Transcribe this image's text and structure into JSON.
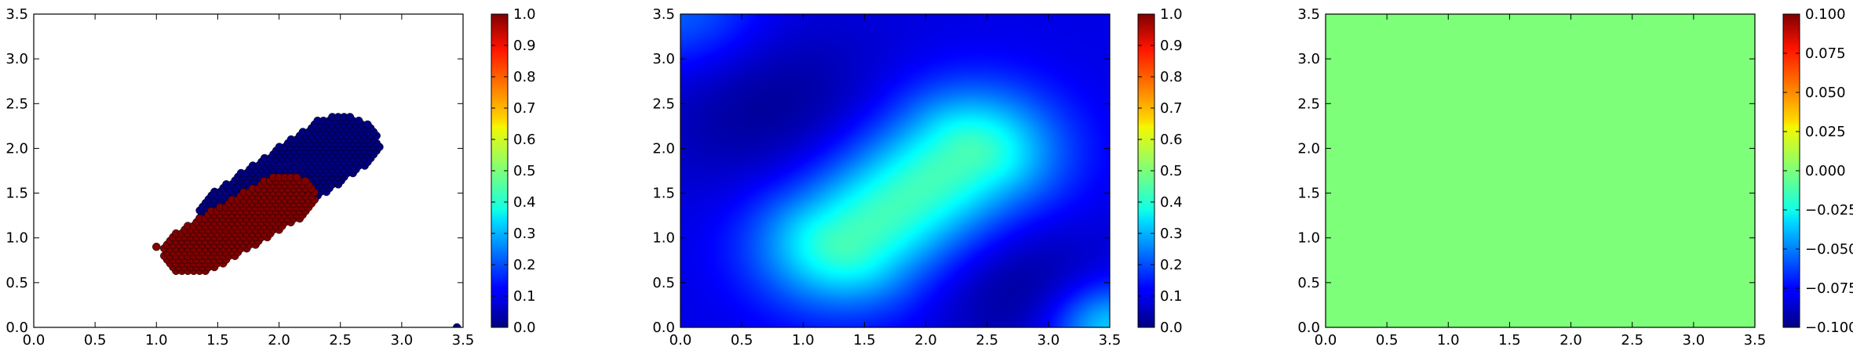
{
  "chart_data": [
    {
      "type": "scatter",
      "xlim": [
        0.0,
        3.5
      ],
      "ylim": [
        0.0,
        3.5
      ],
      "x_ticks": [
        "0.0",
        "0.5",
        "1.0",
        "1.5",
        "2.0",
        "2.5",
        "3.0",
        "3.5"
      ],
      "y_ticks": [
        "0.0",
        "0.5",
        "1.0",
        "1.5",
        "2.0",
        "2.5",
        "3.0",
        "3.5"
      ],
      "colormap": "jet",
      "colorbar": {
        "range": [
          0.0,
          1.0
        ],
        "ticks": [
          "0.0",
          "0.1",
          "0.2",
          "0.3",
          "0.4",
          "0.5",
          "0.6",
          "0.7",
          "0.8",
          "0.9",
          "1.0"
        ]
      },
      "series": [
        {
          "color_value": 0.0,
          "color": "#00007f",
          "region": {
            "from": [
              1.65,
              1.25
            ],
            "to": [
              2.5,
              2.05
            ],
            "radius": 0.32
          },
          "extra_points": [
            [
              3.45,
              0.0
            ]
          ]
        },
        {
          "color_value": 1.0,
          "color": "#7f0000",
          "region": {
            "from": [
              1.3,
              0.85
            ],
            "to": [
              2.05,
              1.45
            ],
            "radius": 0.26
          },
          "extra_points": [
            [
              1.0,
              0.9
            ]
          ]
        }
      ],
      "grid": false
    },
    {
      "type": "heatmap",
      "xlim": [
        0.0,
        3.5
      ],
      "ylim": [
        0.0,
        3.5
      ],
      "x_ticks": [
        "0.0",
        "0.5",
        "1.0",
        "1.5",
        "2.0",
        "2.5",
        "3.0",
        "3.5"
      ],
      "y_ticks": [
        "0.0",
        "0.5",
        "1.0",
        "1.5",
        "2.0",
        "2.5",
        "3.0",
        "3.5"
      ],
      "colormap": "jet",
      "colorbar": {
        "range": [
          0.0,
          1.0
        ],
        "ticks": [
          "0.0",
          "0.1",
          "0.2",
          "0.3",
          "0.4",
          "0.5",
          "0.6",
          "0.7",
          "0.8",
          "0.9",
          "1.0"
        ]
      },
      "field": {
        "base": 0.1,
        "ridge": {
          "from": [
            1.35,
            0.95
          ],
          "to": [
            2.35,
            1.95
          ],
          "peak": 0.45,
          "width": 0.5
        },
        "corner_bumps": [
          {
            "at": [
              0.0,
              3.5
            ],
            "value": 0.13,
            "width": 0.5
          },
          {
            "at": [
              3.5,
              0.0
            ],
            "value": 0.25,
            "width": 0.35
          }
        ],
        "dark_zones": [
          {
            "at": [
              0.7,
              2.5
            ],
            "depth": 0.08,
            "width": 0.7
          },
          {
            "at": [
              2.8,
              0.4
            ],
            "depth": 0.08,
            "width": 0.55
          }
        ]
      },
      "grid": false
    },
    {
      "type": "heatmap",
      "xlim": [
        0.0,
        3.5
      ],
      "ylim": [
        0.0,
        3.5
      ],
      "x_ticks": [
        "0.0",
        "0.5",
        "1.0",
        "1.5",
        "2.0",
        "2.5",
        "3.0",
        "3.5"
      ],
      "y_ticks": [
        "0.0",
        "0.5",
        "1.0",
        "1.5",
        "2.0",
        "2.5",
        "3.0",
        "3.5"
      ],
      "colormap": "jet",
      "colorbar": {
        "range": [
          -0.1,
          0.1
        ],
        "ticks": [
          "−0.100",
          "−0.075",
          "−0.050",
          "−0.025",
          "0.000",
          "0.025",
          "0.050",
          "0.075",
          "0.100"
        ]
      },
      "constant_value": 0.0,
      "fill_color": "#7dff7a",
      "grid": false
    }
  ]
}
